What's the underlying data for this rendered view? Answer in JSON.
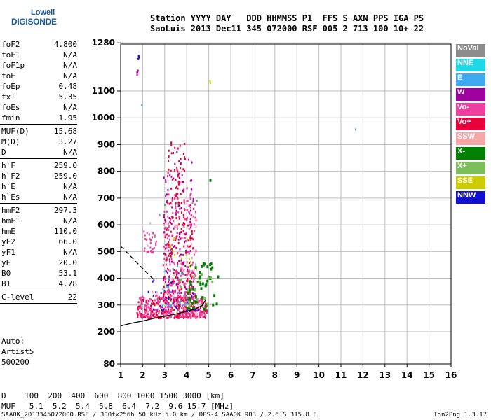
{
  "logo": {
    "line1": "Lowell",
    "line2": "DIGISONDE"
  },
  "header": {
    "line1": "Station YYYY DAY   DDD HHMMSS P1  FFS S AXN PPS IGA PS",
    "line2": "SaoLuis 2013 Dec11 345 072000 RSF 005 2 713 100 10+ 22"
  },
  "params": [
    {
      "group": [
        {
          "k": "foF2",
          "v": "4.800"
        },
        {
          "k": "foF1",
          "v": "N/A"
        },
        {
          "k": "foF1p",
          "v": "N/A"
        },
        {
          "k": "foE",
          "v": "N/A"
        },
        {
          "k": "foEp",
          "v": "0.48"
        },
        {
          "k": "fxI",
          "v": "5.35"
        },
        {
          "k": "foEs",
          "v": "N/A"
        },
        {
          "k": "fmin",
          "v": "1.95"
        }
      ]
    },
    {
      "group": [
        {
          "k": "MUF(D)",
          "v": "15.68"
        },
        {
          "k": "M(D)",
          "v": "3.27"
        },
        {
          "k": "D",
          "v": "N/A"
        }
      ]
    },
    {
      "group": [
        {
          "k": "h`F",
          "v": "259.0"
        },
        {
          "k": "h`F2",
          "v": "259.0"
        },
        {
          "k": "h`E",
          "v": "N/A"
        },
        {
          "k": "h`Es",
          "v": "N/A"
        }
      ]
    },
    {
      "group": [
        {
          "k": "hmF2",
          "v": "297.3"
        },
        {
          "k": "hmF1",
          "v": "N/A"
        },
        {
          "k": "hmE",
          "v": "110.0"
        },
        {
          "k": "yF2",
          "v": "66.0"
        },
        {
          "k": "yF1",
          "v": "N/A"
        },
        {
          "k": "yE",
          "v": "20.0"
        },
        {
          "k": "B0",
          "v": "53.1"
        },
        {
          "k": "B1",
          "v": "4.78"
        }
      ]
    },
    {
      "group": [
        {
          "k": "C-level",
          "v": "22"
        }
      ]
    }
  ],
  "auto_block": "Auto:\nArtist5\n500200",
  "legend": [
    {
      "label": "NoVal",
      "color": "#8c8c8c"
    },
    {
      "label": "NNE",
      "color": "#1fd8e6"
    },
    {
      "label": "E",
      "color": "#3ea8f0"
    },
    {
      "label": "W",
      "color": "#a000a0"
    },
    {
      "label": "Vo-",
      "color": "#ee3fa0"
    },
    {
      "label": "Vo+",
      "color": "#e8003a"
    },
    {
      "label": "SSW",
      "color": "#f5a6a6"
    },
    {
      "label": "X-",
      "color": "#008000"
    },
    {
      "label": "X+",
      "color": "#7cbf5a"
    },
    {
      "label": "SSE",
      "color": "#cccc00"
    },
    {
      "label": "NNW",
      "color": "#1010d0"
    }
  ],
  "muf_table": {
    "row1": "D    100  200  400  600  800 1000 1500 3000 [km]",
    "row2": "MUF   5.1  5.2  5.4  5.8  6.4  7.2  9.6 15.7 [MHz]"
  },
  "footer": {
    "left": "SAA0K_2013345072000.RSF / 300fx256h 50 kHz 5.0 km / DPS-4 SAA0K 903 / 2.6 S 315.8 E",
    "right": "Ion2Png 1.3.17"
  },
  "chart_data": {
    "type": "scatter",
    "title": "",
    "xlabel": "",
    "ylabel": "",
    "xlim": [
      1,
      16
    ],
    "ylim": [
      80,
      1280
    ],
    "y_scale": "linear-km",
    "x_ticks": [
      1,
      2,
      3,
      4,
      5,
      6,
      7,
      8,
      9,
      10,
      11,
      12,
      13,
      14,
      15,
      16
    ],
    "y_ticks": [
      80,
      200,
      300,
      400,
      500,
      600,
      700,
      800,
      900,
      1000,
      1100,
      1280
    ],
    "grid": true,
    "legend_position": "right",
    "curves": [
      {
        "name": "",
        "style": "solid",
        "color": "#000000",
        "x": [
          1.0,
          1.5,
          2.0,
          2.5,
          3.0,
          3.5,
          4.0,
          4.4,
          4.7,
          4.85
        ],
        "y": [
          222,
          232,
          240,
          250,
          258,
          266,
          276,
          286,
          298,
          318
        ]
      },
      {
        "name": "",
        "style": "dashed",
        "color": "#000000",
        "x": [
          1.0,
          1.3,
          1.6,
          1.9,
          2.2,
          2.5
        ],
        "y": [
          520,
          495,
          470,
          445,
          420,
          395
        ]
      }
    ],
    "series": [
      {
        "name": "Vo+",
        "color": "#e8003a",
        "clusters": [
          {
            "x": [
              1.7,
              4.9
            ],
            "y": [
              255,
              330
            ],
            "n": 260
          },
          {
            "x": [
              2.9,
              4.3
            ],
            "y": [
              330,
              680
            ],
            "n": 180
          },
          {
            "x": [
              3.1,
              3.9
            ],
            "y": [
              680,
              920
            ],
            "n": 60
          }
        ]
      },
      {
        "name": "Vo-",
        "color": "#ee3fa0",
        "clusters": [
          {
            "x": [
              1.8,
              4.8
            ],
            "y": [
              260,
              340
            ],
            "n": 200
          },
          {
            "x": [
              2.9,
              4.4
            ],
            "y": [
              330,
              720
            ],
            "n": 150
          },
          {
            "x": [
              2.0,
              2.6
            ],
            "y": [
              500,
              580
            ],
            "n": 30
          }
        ]
      },
      {
        "name": "W",
        "color": "#a000a0",
        "clusters": [
          {
            "x": [
              2.9,
              4.3
            ],
            "y": [
              300,
              880
            ],
            "n": 110
          },
          {
            "x": [
              1.7,
              1.8
            ],
            "y": [
              1100,
              1250
            ],
            "n": 5
          }
        ]
      },
      {
        "name": "NNW",
        "color": "#1010d0",
        "clusters": [
          {
            "x": [
              2.2,
              4.6
            ],
            "y": [
              280,
              420
            ],
            "n": 30
          },
          {
            "x": [
              1.75,
              1.8
            ],
            "y": [
              1180,
              1250
            ],
            "n": 4
          }
        ]
      },
      {
        "name": "X-",
        "color": "#008000",
        "clusters": [
          {
            "x": [
              4.0,
              5.4
            ],
            "y": [
              290,
              460
            ],
            "n": 50
          },
          {
            "x": [
              5.0,
              5.05
            ],
            "y": [
              770,
              780
            ],
            "n": 1
          }
        ]
      },
      {
        "name": "X+",
        "color": "#7cbf5a",
        "clusters": [
          {
            "x": [
              3.5,
              5.2
            ],
            "y": [
              300,
              420
            ],
            "n": 20
          }
        ]
      },
      {
        "name": "SSE",
        "color": "#cccc00",
        "clusters": [
          {
            "x": [
              3.2,
              4.2
            ],
            "y": [
              440,
              560
            ],
            "n": 12
          },
          {
            "x": [
              5.0,
              5.05
            ],
            "y": [
              1130,
              1150
            ],
            "n": 2
          }
        ]
      },
      {
        "name": "E",
        "color": "#3ea8f0",
        "clusters": [
          {
            "x": [
              2.8,
              4.0
            ],
            "y": [
              300,
              480
            ],
            "n": 20
          },
          {
            "x": [
              11.6,
              11.65
            ],
            "y": [
              960,
              965
            ],
            "n": 1
          },
          {
            "x": [
              1.9,
              1.95
            ],
            "y": [
              1050,
              1060
            ],
            "n": 1
          }
        ]
      },
      {
        "name": "SSW",
        "color": "#f5a6a6",
        "clusters": [
          {
            "x": [
              2.0,
              4.5
            ],
            "y": [
              270,
              620
            ],
            "n": 30
          }
        ]
      },
      {
        "name": "NoVal",
        "color": "#8c8c8c",
        "clusters": [
          {
            "x": [
              2.5,
              4.5
            ],
            "y": [
              300,
              700
            ],
            "n": 15
          }
        ]
      }
    ]
  }
}
